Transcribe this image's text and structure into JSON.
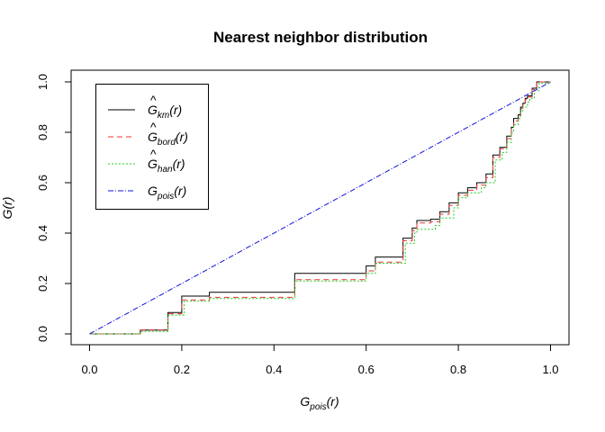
{
  "chart_data": {
    "type": "line",
    "title": "Nearest neighbor distribution",
    "xlabel": "G_pois(r)",
    "ylabel": "G(r)",
    "xlim": [
      0,
      1
    ],
    "ylim": [
      0,
      1
    ],
    "x_ticks": [
      "0.0",
      "0.2",
      "0.4",
      "0.6",
      "0.8",
      "1.0"
    ],
    "y_ticks": [
      "0.0",
      "0.2",
      "0.4",
      "0.6",
      "0.8",
      "1.0"
    ],
    "grid": false,
    "legend_position": "top-left",
    "series": [
      {
        "name": "Ĝ_km(r)",
        "color": "#000000",
        "dash": "solid",
        "step": true,
        "x": [
          0,
          0.11,
          0.17,
          0.2,
          0.26,
          0.445,
          0.6,
          0.62,
          0.68,
          0.7,
          0.71,
          0.74,
          0.76,
          0.78,
          0.8,
          0.82,
          0.84,
          0.86,
          0.875,
          0.89,
          0.905,
          0.915,
          0.92,
          0.93,
          0.935,
          0.94,
          0.945,
          0.95,
          0.96,
          0.97,
          1.0
        ],
        "y": [
          0,
          0.015,
          0.085,
          0.15,
          0.165,
          0.24,
          0.27,
          0.305,
          0.38,
          0.42,
          0.45,
          0.455,
          0.485,
          0.52,
          0.56,
          0.58,
          0.6,
          0.635,
          0.71,
          0.74,
          0.785,
          0.82,
          0.855,
          0.87,
          0.9,
          0.915,
          0.935,
          0.945,
          0.975,
          1.0,
          1.0
        ]
      },
      {
        "name": "Ĝ_bord(r)",
        "color": "#ee3333",
        "dash": "6,4",
        "step": true,
        "x": [
          0,
          0.11,
          0.17,
          0.2,
          0.26,
          0.445,
          0.6,
          0.62,
          0.68,
          0.7,
          0.71,
          0.74,
          0.76,
          0.78,
          0.8,
          0.82,
          0.84,
          0.86,
          0.875,
          0.89,
          0.905,
          0.915,
          0.92,
          0.93,
          0.935,
          0.94,
          0.945,
          0.95,
          0.96,
          0.97,
          1.0
        ],
        "y": [
          0,
          0.015,
          0.08,
          0.135,
          0.145,
          0.215,
          0.25,
          0.285,
          0.37,
          0.41,
          0.44,
          0.445,
          0.475,
          0.51,
          0.55,
          0.57,
          0.59,
          0.62,
          0.7,
          0.735,
          0.775,
          0.815,
          0.845,
          0.865,
          0.895,
          0.91,
          0.93,
          0.94,
          0.97,
          1.0,
          1.0
        ]
      },
      {
        "name": "Ĝ_han(r)",
        "color": "#22cc22",
        "dash": "2,2",
        "step": true,
        "x": [
          0,
          0.11,
          0.17,
          0.205,
          0.26,
          0.445,
          0.6,
          0.62,
          0.685,
          0.705,
          0.71,
          0.75,
          0.76,
          0.79,
          0.8,
          0.82,
          0.85,
          0.86,
          0.88,
          0.895,
          0.905,
          0.915,
          0.92,
          0.93,
          0.935,
          0.94,
          0.95,
          0.955,
          0.965,
          0.975,
          1.0
        ],
        "y": [
          0,
          0.01,
          0.075,
          0.13,
          0.14,
          0.21,
          0.24,
          0.28,
          0.36,
          0.4,
          0.415,
          0.43,
          0.46,
          0.5,
          0.54,
          0.56,
          0.58,
          0.6,
          0.69,
          0.72,
          0.76,
          0.8,
          0.83,
          0.855,
          0.885,
          0.9,
          0.92,
          0.935,
          0.965,
          0.995,
          0.995
        ]
      },
      {
        "name": "G_pois(r)",
        "color": "#1111dd",
        "dash": "6,2,1,2",
        "step": false,
        "x": [
          0,
          1
        ],
        "y": [
          0,
          1
        ]
      }
    ],
    "legend": [
      {
        "hat": "^",
        "base": "G",
        "sub": "km",
        "tail": "(r)"
      },
      {
        "hat": "^",
        "base": "G",
        "sub": "bord",
        "tail": "(r)"
      },
      {
        "hat": "^",
        "base": "G",
        "sub": "han",
        "tail": "(r)"
      },
      {
        "hat": "",
        "base": "G",
        "sub": "pois",
        "tail": "(r)"
      }
    ],
    "axis_labels": {
      "x": {
        "base": "G",
        "sub": "pois",
        "tail": "(r)"
      },
      "y": {
        "base": "G",
        "tail": "(r)"
      }
    }
  }
}
